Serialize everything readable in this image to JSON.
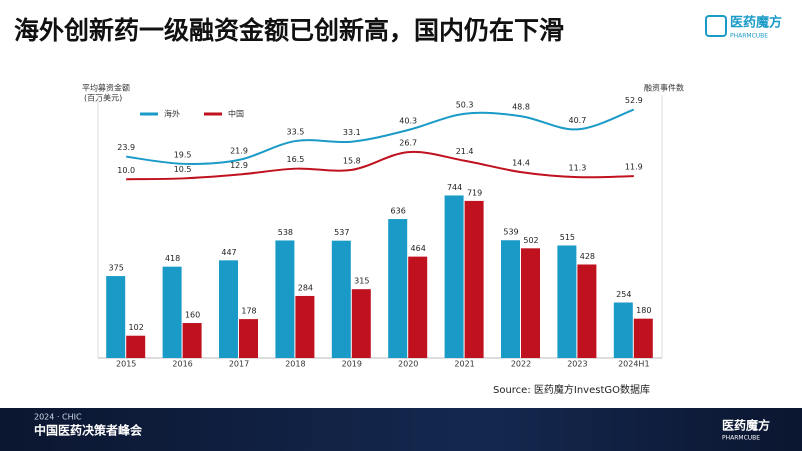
{
  "header": {
    "title": "海外创新药一级融资金额已创新高，国内仍在下滑",
    "logo": "医药魔方",
    "logo_sub": "PHARMCUBE"
  },
  "chart_data": {
    "type": "bar_line",
    "y_label": [
      "平均募资金额",
      "(百万美元)"
    ],
    "y2_label": "融资事件数",
    "categories": [
      "2015",
      "2016",
      "2017",
      "2018",
      "2019",
      "2020",
      "2021",
      "2022",
      "2023",
      "2024H1"
    ],
    "ylim": [
      0,
      1190
    ],
    "y2lim": [
      -100,
      60
    ],
    "series": [
      {
        "name": "海外",
        "color": "#1a9bc7",
        "values": [
          375,
          418,
          447,
          538,
          537,
          636,
          744,
          539,
          515,
          254
        ],
        "line_values": [
          23.9,
          19.5,
          21.9,
          33.5,
          33.1,
          40.3,
          50.3,
          48.8,
          40.7,
          52.9
        ]
      },
      {
        "name": "中国",
        "color": "#c0111f",
        "values": [
          102,
          160,
          178,
          284,
          315,
          464,
          719,
          502,
          428,
          180
        ],
        "line_values": [
          10.0,
          10.5,
          12.9,
          16.5,
          15.8,
          26.7,
          21.4,
          14.4,
          11.3,
          11.9
        ],
        "line_value_labels": [
          "10.0",
          "10.5",
          "12.9",
          "16.5",
          "15.8",
          "26.7",
          "21.4",
          "14.4",
          "11.3",
          "11.9"
        ]
      }
    ],
    "source": "Source: 医药魔方InvestGO数据库"
  },
  "footer": {
    "event_year": "2024 · CHIC",
    "event": "中国医药决策者峰会",
    "logo": "医药魔方",
    "logo_sub": "PHARMCUBE"
  }
}
